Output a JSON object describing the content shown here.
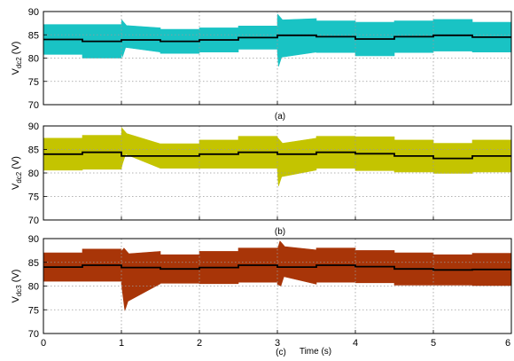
{
  "chart_data": [
    {
      "type": "area",
      "caption": "(a)",
      "ylabel": "V",
      "ylabel_sub": "dc2",
      "ylabel_unit": "(V)",
      "ylim": [
        70,
        90
      ],
      "yticks": [
        70,
        75,
        80,
        85,
        90
      ],
      "xlim": [
        0,
        6
      ],
      "xticks": [
        0,
        1,
        2,
        3,
        4,
        5,
        6
      ],
      "show_xtick_labels": false,
      "band_color": "#19c3c4",
      "segments": [
        [
          0,
          0.5,
          84.0,
          3.2
        ],
        [
          0.5,
          1.0,
          83.6,
          3.6
        ],
        [
          1.0,
          1.5,
          83.9,
          2.6
        ],
        [
          1.5,
          2.0,
          83.6,
          2.6
        ],
        [
          2.0,
          2.5,
          83.9,
          2.6
        ],
        [
          2.5,
          3.0,
          84.4,
          2.5
        ],
        [
          3.0,
          3.5,
          84.9,
          3.6
        ],
        [
          3.5,
          4.0,
          84.6,
          3.4
        ],
        [
          4.0,
          4.5,
          84.1,
          3.6
        ],
        [
          4.5,
          5.0,
          84.6,
          3.4
        ],
        [
          5.0,
          5.5,
          84.9,
          3.4
        ],
        [
          5.5,
          6.0,
          84.5,
          3.2
        ]
      ],
      "transients": [
        [
          1.02,
          88.2,
          80.3
        ],
        [
          3.02,
          89.4,
          78.2
        ]
      ]
    },
    {
      "type": "area",
      "caption": "(b)",
      "ylabel": "V",
      "ylabel_sub": "dc2",
      "ylabel_unit": "(V)",
      "ylim": [
        70,
        90
      ],
      "yticks": [
        70,
        75,
        80,
        85,
        90
      ],
      "xlim": [
        0,
        6
      ],
      "xticks": [
        0,
        1,
        2,
        3,
        4,
        5,
        6
      ],
      "show_xtick_labels": false,
      "band_color": "#c4c400",
      "segments": [
        [
          0,
          0.5,
          84.0,
          3.4
        ],
        [
          0.5,
          1.0,
          84.4,
          3.6
        ],
        [
          1.0,
          1.5,
          83.6,
          2.6
        ],
        [
          1.5,
          2.0,
          83.6,
          2.6
        ],
        [
          2.0,
          2.5,
          84.0,
          3.0
        ],
        [
          2.5,
          3.0,
          84.4,
          3.4
        ],
        [
          3.0,
          3.5,
          84.0,
          3.4
        ],
        [
          3.5,
          4.0,
          84.4,
          3.4
        ],
        [
          4.0,
          4.5,
          84.1,
          3.6
        ],
        [
          4.5,
          5.0,
          83.6,
          3.4
        ],
        [
          5.0,
          5.5,
          83.1,
          3.2
        ],
        [
          5.5,
          6.0,
          83.6,
          3.4
        ]
      ],
      "transients": [
        [
          1.02,
          89.6,
          82.0
        ],
        [
          3.02,
          87.5,
          77.2
        ]
      ]
    },
    {
      "type": "area",
      "caption": "(c)",
      "ylabel": "V",
      "ylabel_sub": "dc3",
      "ylabel_unit": "(V)",
      "xlabel": "Time (s)",
      "ylim": [
        70,
        90
      ],
      "yticks": [
        70,
        75,
        80,
        85,
        90
      ],
      "xlim": [
        0,
        6
      ],
      "xticks": [
        0,
        1,
        2,
        3,
        4,
        5,
        6
      ],
      "show_xtick_labels": true,
      "band_color": "#a83508",
      "segments": [
        [
          0,
          0.5,
          84.0,
          3.0
        ],
        [
          0.5,
          1.0,
          84.4,
          3.4
        ],
        [
          1.0,
          1.5,
          83.9,
          3.4
        ],
        [
          1.5,
          2.0,
          83.6,
          3.0
        ],
        [
          2.0,
          2.5,
          83.9,
          3.4
        ],
        [
          2.5,
          3.0,
          84.4,
          3.6
        ],
        [
          3.0,
          3.5,
          84.0,
          3.6
        ],
        [
          3.5,
          4.0,
          84.4,
          3.6
        ],
        [
          4.0,
          4.5,
          84.1,
          3.4
        ],
        [
          4.5,
          5.0,
          83.6,
          3.4
        ],
        [
          5.0,
          5.5,
          83.4,
          3.2
        ],
        [
          5.5,
          6.0,
          83.5,
          3.4
        ]
      ],
      "transients": [
        [
          1.05,
          88.0,
          74.8
        ],
        [
          3.05,
          89.5,
          80.0
        ]
      ]
    }
  ]
}
